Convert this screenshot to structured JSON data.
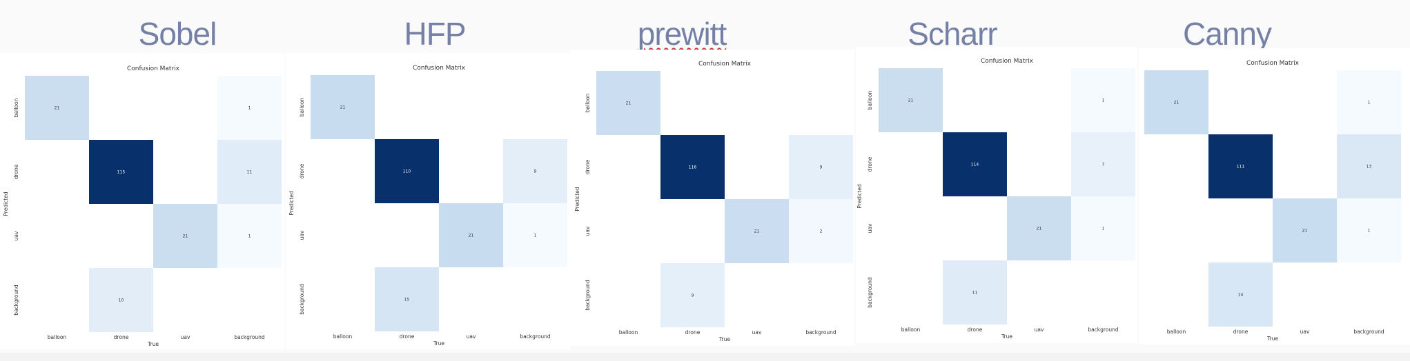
{
  "titles": [
    "Sobel",
    "HFP",
    "prewitt",
    "Scharr",
    "Canny"
  ],
  "chart_data": [
    {
      "type": "heatmap",
      "title": "Confusion Matrix",
      "xlabel": "True",
      "ylabel": "Predicted",
      "x_categories": [
        "balloon",
        "drone",
        "uav",
        "background"
      ],
      "y_categories": [
        "balloon",
        "drone",
        "uav",
        "background"
      ],
      "values": [
        [
          21,
          null,
          null,
          1
        ],
        [
          null,
          115,
          null,
          11
        ],
        [
          null,
          null,
          21,
          1
        ],
        [
          null,
          10,
          null,
          null
        ]
      ],
      "colormap": "Blues"
    },
    {
      "type": "heatmap",
      "title": "Confusion Matrix",
      "xlabel": "True",
      "ylabel": "Predicted",
      "x_categories": [
        "balloon",
        "drone",
        "uav",
        "background"
      ],
      "y_categories": [
        "balloon",
        "drone",
        "uav",
        "background"
      ],
      "values": [
        [
          21,
          null,
          null,
          null
        ],
        [
          null,
          110,
          null,
          9
        ],
        [
          null,
          null,
          21,
          1
        ],
        [
          null,
          15,
          null,
          null
        ]
      ],
      "colormap": "Blues"
    },
    {
      "type": "heatmap",
      "title": "Confusion Matrix",
      "xlabel": "True",
      "ylabel": "Predicted",
      "x_categories": [
        "balloon",
        "drone",
        "uav",
        "background"
      ],
      "y_categories": [
        "balloon",
        "drone",
        "uav",
        "background"
      ],
      "values": [
        [
          21,
          null,
          null,
          null
        ],
        [
          null,
          116,
          null,
          9
        ],
        [
          null,
          null,
          21,
          2
        ],
        [
          null,
          9,
          null,
          null
        ]
      ],
      "colormap": "Blues"
    },
    {
      "type": "heatmap",
      "title": "Confusion Matrix",
      "xlabel": "True",
      "ylabel": "Predicted",
      "x_categories": [
        "balloon",
        "drone",
        "uav",
        "background"
      ],
      "y_categories": [
        "balloon",
        "drone",
        "uav",
        "background"
      ],
      "values": [
        [
          21,
          null,
          null,
          1
        ],
        [
          null,
          114,
          null,
          7
        ],
        [
          null,
          null,
          21,
          1
        ],
        [
          null,
          11,
          null,
          null
        ]
      ],
      "colormap": "Blues"
    },
    {
      "type": "heatmap",
      "title": "Confusion Matrix",
      "xlabel": "True",
      "ylabel": "",
      "x_categories": [
        "balloon",
        "drone",
        "uav",
        "background"
      ],
      "y_categories": [
        "",
        "",
        "",
        ""
      ],
      "values": [
        [
          21,
          null,
          null,
          1
        ],
        [
          null,
          111,
          null,
          13
        ],
        [
          null,
          null,
          21,
          1
        ],
        [
          null,
          14,
          null,
          null
        ]
      ],
      "colormap": "Blues"
    }
  ]
}
